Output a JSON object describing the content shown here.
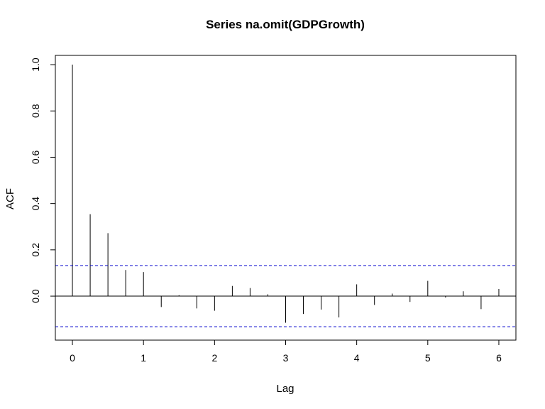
{
  "chart_data": {
    "type": "bar",
    "title": "Series  na.omit(GDPGrowth)",
    "xlabel": "Lag",
    "ylabel": "ACF",
    "xlim": [
      -0.24,
      6.24
    ],
    "ylim": [
      -0.19,
      1.04
    ],
    "x_ticks": [
      0,
      1,
      2,
      3,
      4,
      5,
      6
    ],
    "x_tick_labels": [
      "0",
      "1",
      "2",
      "3",
      "4",
      "5",
      "6"
    ],
    "y_ticks": [
      0.0,
      0.2,
      0.4,
      0.6,
      0.8,
      1.0
    ],
    "y_tick_labels": [
      "0.0",
      "0.2",
      "0.4",
      "0.6",
      "0.8",
      "1.0"
    ],
    "lags": [
      0,
      0.25,
      0.5,
      0.75,
      1,
      1.25,
      1.5,
      1.75,
      2,
      2.25,
      2.5,
      2.75,
      3,
      3.25,
      3.5,
      3.75,
      4,
      4.25,
      4.5,
      4.75,
      5,
      5.25,
      5.5,
      5.75,
      6
    ],
    "acf": [
      1.0,
      0.354,
      0.272,
      0.113,
      0.104,
      -0.047,
      0.004,
      -0.053,
      -0.063,
      0.044,
      0.035,
      0.008,
      -0.115,
      -0.077,
      -0.058,
      -0.092,
      0.051,
      -0.038,
      0.011,
      -0.025,
      0.066,
      -0.006,
      0.021,
      -0.056,
      0.031
    ],
    "confidence_bounds": [
      0.132,
      -0.132
    ],
    "confidence_color": "#0000CC",
    "grid": false,
    "legend": "none"
  }
}
